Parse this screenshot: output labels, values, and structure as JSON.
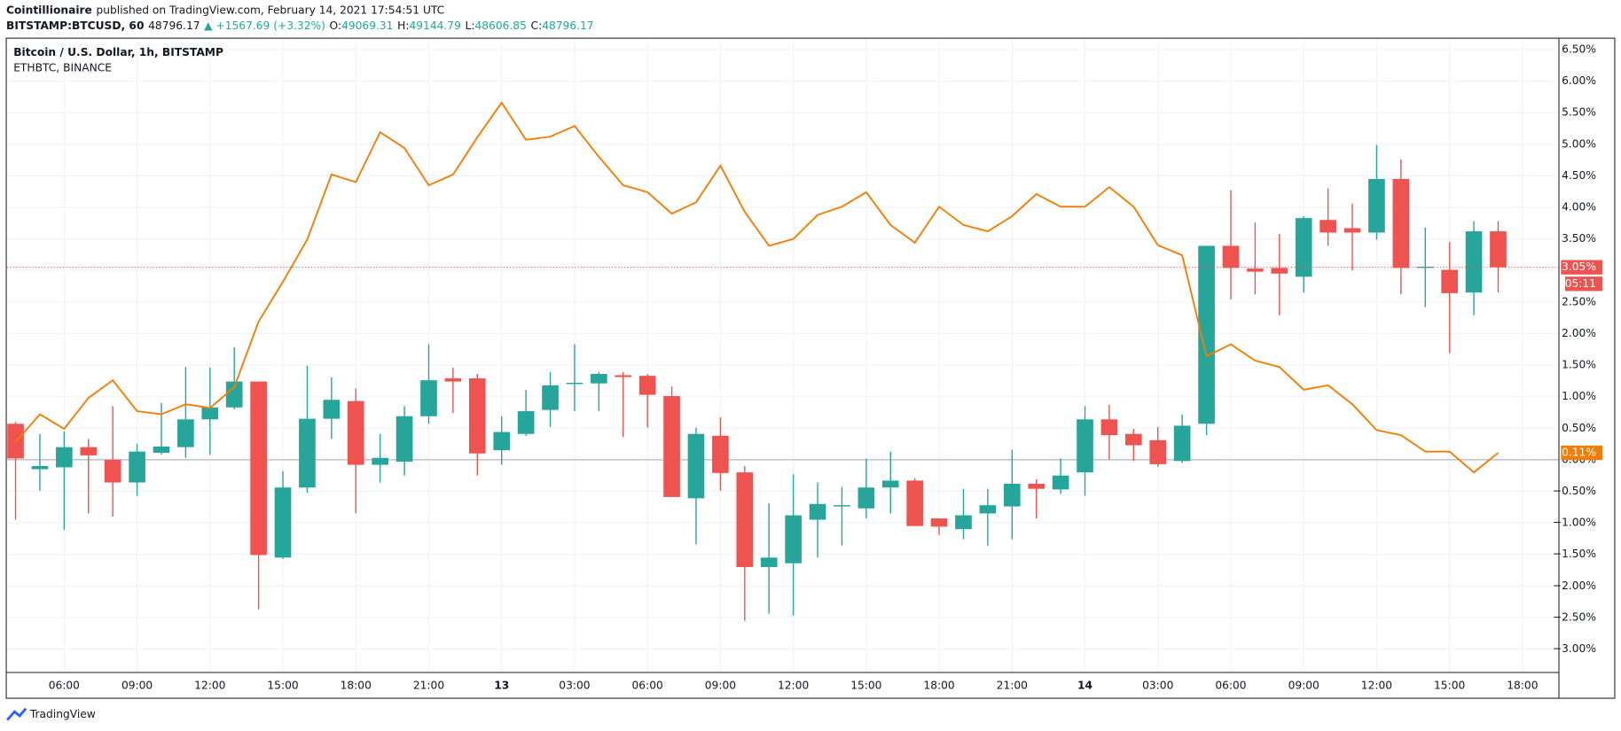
{
  "header": {
    "publisher": "Cointillionaire",
    "published": "published on TradingView.com, February 14, 2021 17:54:51 UTC",
    "symbol": "BITSTAMP:BTCUSD, 60",
    "last": "48796.17",
    "change": "▲ +1567.69 (+3.32%)",
    "ohlc": [
      {
        "label": "O:",
        "value": "49069.31"
      },
      {
        "label": "H:",
        "value": "49144.79"
      },
      {
        "label": "L:",
        "value": "48606.85"
      },
      {
        "label": "C:",
        "value": "48796.17"
      }
    ]
  },
  "footer": {
    "brand": "TradingView"
  },
  "chart_data": {
    "type": "candlestick",
    "x": [
      4,
      5,
      6,
      7,
      8,
      9,
      10,
      11,
      12,
      13,
      14,
      15,
      16,
      17,
      18,
      19,
      20,
      21,
      22,
      23,
      24,
      25,
      26,
      27,
      28,
      29,
      30,
      31,
      32,
      33,
      34,
      35,
      36,
      37,
      38,
      39,
      40,
      41,
      42,
      43,
      44,
      45,
      46,
      47,
      48,
      49,
      50,
      51,
      52,
      53,
      54,
      55,
      56,
      57,
      58,
      59,
      60,
      61,
      62,
      63,
      64,
      65
    ],
    "xlim": [
      3.66,
      67.5
    ],
    "xticks": [
      {
        "value": 6,
        "label": "06:00"
      },
      {
        "value": 9,
        "label": "09:00"
      },
      {
        "value": 12,
        "label": "12:00"
      },
      {
        "value": 15,
        "label": "15:00"
      },
      {
        "value": 18,
        "label": "18:00"
      },
      {
        "value": 21,
        "label": "21:00"
      },
      {
        "value": 24,
        "label": "13"
      },
      {
        "value": 27,
        "label": "03:00"
      },
      {
        "value": 30,
        "label": "06:00"
      },
      {
        "value": 33,
        "label": "09:00"
      },
      {
        "value": 36,
        "label": "12:00"
      },
      {
        "value": 39,
        "label": "15:00"
      },
      {
        "value": 42,
        "label": "18:00"
      },
      {
        "value": 45,
        "label": "21:00"
      },
      {
        "value": 48,
        "label": "14"
      },
      {
        "value": 51,
        "label": "03:00"
      },
      {
        "value": 54,
        "label": "06:00"
      },
      {
        "value": 57,
        "label": "09:00"
      },
      {
        "value": 60,
        "label": "12:00"
      },
      {
        "value": 63,
        "label": "15:00"
      },
      {
        "value": 66,
        "label": "18:00"
      }
    ],
    "ylim": [
      -3.37,
      6.68
    ],
    "yticks": [
      {
        "value": 6.5,
        "label": "6.50%"
      },
      {
        "value": 6,
        "label": "6.00%"
      },
      {
        "value": 5.5,
        "label": "5.50%"
      },
      {
        "value": 5,
        "label": "5.00%"
      },
      {
        "value": 4.5,
        "label": "4.50%"
      },
      {
        "value": 4,
        "label": "4.00%"
      },
      {
        "value": 3.5,
        "label": "3.50%"
      },
      {
        "value": 3,
        "label": "3.00%"
      },
      {
        "value": 2.5,
        "label": "2.50%"
      },
      {
        "value": 2,
        "label": "2.00%"
      },
      {
        "value": 1.5,
        "label": "1.50%"
      },
      {
        "value": 1,
        "label": "1.00%"
      },
      {
        "value": 0.5,
        "label": "0.50%"
      },
      {
        "value": 0,
        "label": "0.00%"
      },
      {
        "value": -0.5,
        "label": "−0.50%"
      },
      {
        "value": -1,
        "label": "−1.00%"
      },
      {
        "value": -1.5,
        "label": "−1.50%"
      },
      {
        "value": -2,
        "label": "−2.00%"
      },
      {
        "value": -2.5,
        "label": "−2.50%"
      },
      {
        "value": -3,
        "label": "−3.00%"
      }
    ],
    "grid": true,
    "baseline": 0,
    "series": [
      {
        "name": "Bitcoin / U.S. Dollar, 1h, BITSTAMP",
        "type": "candlestick",
        "up_color": "#26a69a",
        "down_color": "#ef5350",
        "open": [
          0.57,
          -0.15,
          -0.12,
          0.2,
          0.0,
          -0.36,
          0.11,
          0.2,
          0.64,
          0.83,
          1.24,
          -1.55,
          -0.44,
          0.65,
          0.93,
          -0.08,
          -0.03,
          0.69,
          1.29,
          1.29,
          0.15,
          0.41,
          0.79,
          1.2,
          1.21,
          1.34,
          1.33,
          1.01,
          -0.61,
          0.38,
          -0.2,
          -1.7,
          -1.64,
          -0.95,
          -0.74,
          -0.77,
          -0.44,
          -0.33,
          -0.93,
          -1.1,
          -0.85,
          -0.74,
          -0.38,
          -0.47,
          -0.2,
          0.64,
          0.41,
          0.31,
          -0.02,
          0.57,
          3.39,
          3.03,
          3.04,
          2.9,
          3.8,
          3.67,
          3.6,
          4.45,
          3.04,
          3.01,
          2.65,
          3.62
        ],
        "high": [
          0.6,
          0.41,
          0.45,
          0.33,
          0.85,
          0.25,
          0.9,
          1.47,
          1.46,
          1.78,
          1.24,
          -0.18,
          1.49,
          1.31,
          1.13,
          0.41,
          0.85,
          1.83,
          1.46,
          1.36,
          0.69,
          1.11,
          1.39,
          1.83,
          1.39,
          1.39,
          1.36,
          1.16,
          0.51,
          0.67,
          -0.1,
          -0.69,
          -0.23,
          -0.36,
          -0.43,
          0.02,
          0.13,
          -0.29,
          -0.93,
          -0.46,
          -0.46,
          0.16,
          -0.31,
          0.02,
          0.85,
          0.87,
          0.49,
          0.52,
          0.72,
          3.39,
          4.27,
          3.76,
          3.58,
          3.86,
          4.3,
          4.06,
          4.99,
          4.76,
          3.68,
          3.45,
          3.78,
          3.78
        ],
        "low": [
          -0.95,
          -0.49,
          -1.11,
          -0.85,
          -0.9,
          -0.57,
          0.08,
          0.03,
          0.08,
          0.8,
          -2.37,
          -1.57,
          -0.52,
          0.33,
          -0.85,
          -0.36,
          -0.25,
          0.57,
          0.74,
          -0.25,
          -0.08,
          0.38,
          0.52,
          0.77,
          0.77,
          0.36,
          0.51,
          -0.59,
          -1.34,
          -0.49,
          -2.55,
          -2.44,
          -2.47,
          -1.55,
          -1.36,
          -0.93,
          -0.85,
          -1.05,
          -1.19,
          -1.26,
          -1.36,
          -1.26,
          -0.93,
          -0.54,
          -0.57,
          0.0,
          -0.02,
          -0.11,
          -0.05,
          0.39,
          2.54,
          2.62,
          2.29,
          2.65,
          3.39,
          3.0,
          3.49,
          2.62,
          2.42,
          1.69,
          2.29,
          2.65
        ],
        "close": [
          0.02,
          -0.1,
          0.2,
          0.07,
          -0.36,
          0.13,
          0.21,
          0.64,
          0.83,
          1.24,
          -1.51,
          -0.44,
          0.65,
          0.95,
          -0.08,
          0.03,
          0.69,
          1.26,
          1.24,
          0.1,
          0.44,
          0.77,
          1.18,
          1.22,
          1.36,
          1.31,
          1.03,
          -0.59,
          0.41,
          -0.21,
          -1.7,
          -1.55,
          -0.88,
          -0.7,
          -0.72,
          -0.44,
          -0.33,
          -1.05,
          -1.06,
          -0.88,
          -0.72,
          -0.38,
          -0.46,
          -0.25,
          0.64,
          0.39,
          0.23,
          -0.07,
          0.54,
          3.39,
          3.04,
          2.98,
          2.95,
          3.83,
          3.6,
          3.6,
          4.45,
          3.04,
          3.06,
          2.64,
          3.62,
          3.05
        ]
      },
      {
        "name": "ETHBTC, BINANCE",
        "type": "line",
        "color": "#f57c00",
        "values": [
          0.28,
          0.72,
          0.49,
          0.98,
          1.26,
          0.77,
          0.72,
          0.88,
          0.82,
          1.15,
          2.19,
          2.82,
          3.49,
          4.52,
          4.4,
          5.19,
          4.94,
          4.35,
          4.52,
          5.11,
          5.66,
          5.07,
          5.12,
          5.29,
          4.8,
          4.35,
          4.24,
          3.9,
          4.08,
          4.66,
          3.93,
          3.39,
          3.5,
          3.88,
          4.01,
          4.24,
          3.72,
          3.44,
          4.01,
          3.72,
          3.62,
          3.86,
          4.21,
          4.01,
          4.01,
          4.32,
          4.01,
          3.4,
          3.24,
          1.64,
          1.83,
          1.57,
          1.47,
          1.11,
          1.18,
          0.88,
          0.47,
          0.39,
          0.13,
          0.13,
          -0.2,
          0.11
        ]
      }
    ],
    "markers": [
      {
        "value": 3.05,
        "label": "3.05%",
        "countdown": "05:11",
        "color": "#ef5350"
      },
      {
        "value": 0.11,
        "label": "0.11%",
        "color": "#f57c00"
      }
    ]
  }
}
